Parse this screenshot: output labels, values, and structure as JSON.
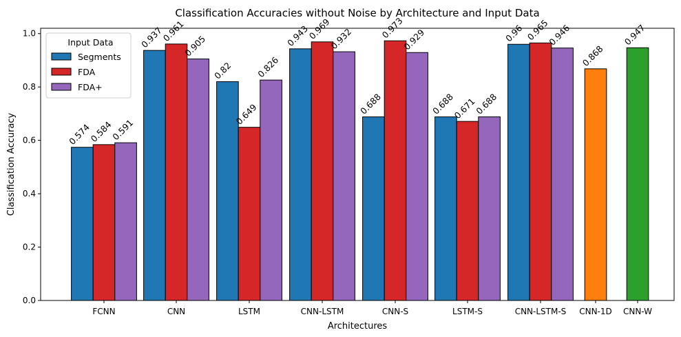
{
  "chart_data": {
    "type": "bar",
    "title": "Classification Accuracies without Noise by Architecture and Input Data",
    "xlabel": "Architectures",
    "ylabel": "Classification Accuracy",
    "ylim": [
      0,
      1.02
    ],
    "yticks": [
      "0.0",
      "0.2",
      "0.4",
      "0.6",
      "0.8",
      "1.0"
    ],
    "grid": false,
    "legend": {
      "title": "Input Data",
      "placement": "top-left",
      "entries": [
        {
          "label": "Segments",
          "color": "#1f77b4"
        },
        {
          "label": "FDA",
          "color": "#d62728"
        },
        {
          "label": "FDA+",
          "color": "#9467bd"
        }
      ]
    },
    "categories": [
      "FCNN",
      "CNN",
      "LSTM",
      "CNN-LSTM",
      "CNN-S",
      "LSTM-S",
      "CNN-LSTM-S",
      "CNN-1D",
      "CNN-W"
    ],
    "series": [
      {
        "name": "Segments",
        "color": "#1f77b4",
        "values": [
          0.574,
          0.937,
          0.82,
          0.943,
          0.688,
          0.688,
          0.96,
          null,
          null
        ],
        "labels": [
          "0.574",
          "0.937",
          "0.82",
          "0.943",
          "0.688",
          "0.688",
          "0.96",
          "",
          ""
        ]
      },
      {
        "name": "FDA",
        "color": "#d62728",
        "values": [
          0.584,
          0.961,
          0.649,
          0.969,
          0.973,
          0.671,
          0.965,
          null,
          null
        ],
        "labels": [
          "0.584",
          "0.961",
          "0.649",
          "0.969",
          "0.973",
          "0.671",
          "0.965",
          "",
          ""
        ]
      },
      {
        "name": "FDA+",
        "color": "#9467bd",
        "values": [
          0.591,
          0.905,
          0.826,
          0.932,
          0.929,
          0.688,
          0.946,
          null,
          null
        ],
        "labels": [
          "0.591",
          "0.905",
          "0.826",
          "0.932",
          "0.929",
          "0.688",
          "0.946",
          "",
          ""
        ]
      }
    ],
    "single_bars": [
      {
        "category": "CNN-1D",
        "value": 0.868,
        "label": "0.868",
        "color": "#ff7f0e"
      },
      {
        "category": "CNN-W",
        "value": 0.947,
        "label": "0.947",
        "color": "#2ca02c"
      }
    ]
  }
}
